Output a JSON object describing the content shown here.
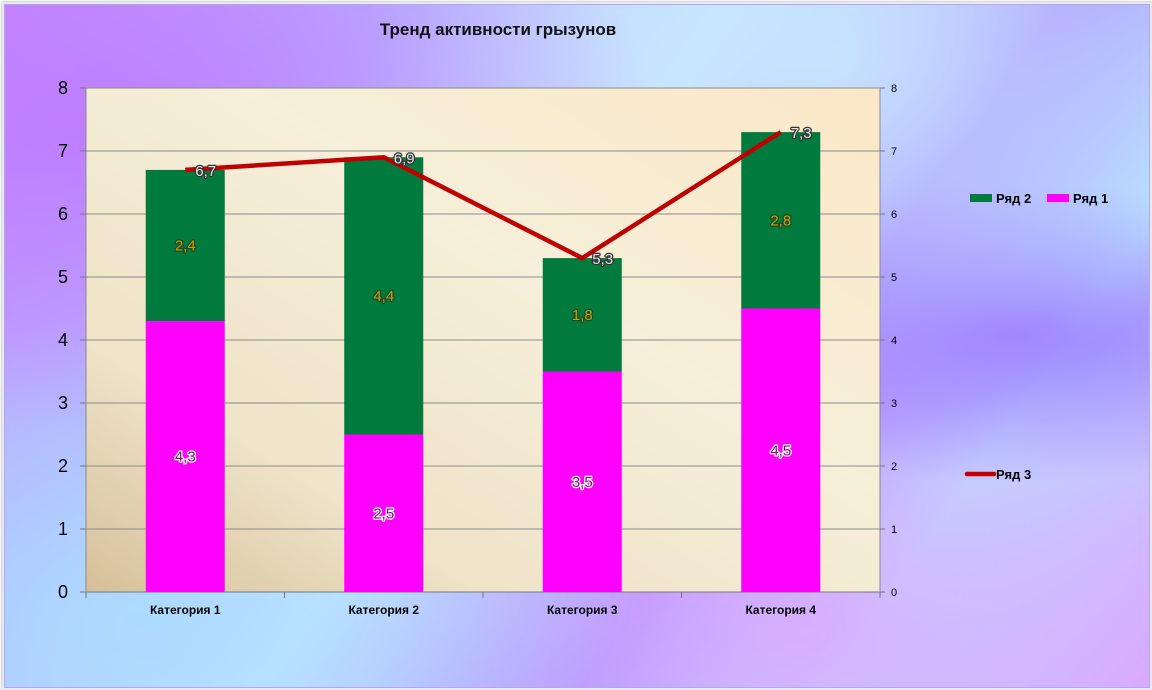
{
  "chart_data": {
    "type": "bar",
    "stacked": true,
    "title": "Тренд активности грызунов",
    "categories": [
      "Категория 1",
      "Категория 2",
      "Категория 3",
      "Категория 4"
    ],
    "series": [
      {
        "name": "Ряд 1",
        "type": "bar",
        "color": "#ff00ff",
        "values": [
          4.3,
          2.5,
          3.5,
          4.5
        ],
        "labels": [
          "4,3",
          "2,5",
          "3,5",
          "4,5"
        ]
      },
      {
        "name": "Ряд 2",
        "type": "bar",
        "color": "#007a3d",
        "values": [
          2.4,
          4.4,
          1.8,
          2.8
        ],
        "labels": [
          "2,4",
          "4,4",
          "1,8",
          "2,8"
        ]
      },
      {
        "name": "Ряд 3",
        "type": "line",
        "color": "#c00000",
        "values": [
          6.7,
          6.9,
          5.3,
          7.3
        ],
        "labels": [
          "6,7",
          "6,9",
          "5,3",
          "7,3"
        ]
      }
    ],
    "ylim": [
      0,
      8
    ],
    "y_ticks": [
      "0",
      "1",
      "2",
      "3",
      "4",
      "5",
      "6",
      "7",
      "8"
    ],
    "y2lim": [
      0,
      8
    ],
    "y2_ticks": [
      "0",
      "1",
      "2",
      "3",
      "4",
      "5",
      "6",
      "7",
      "8"
    ],
    "grid": true,
    "legend_placement": "right",
    "xlabel": "",
    "ylabel": ""
  }
}
